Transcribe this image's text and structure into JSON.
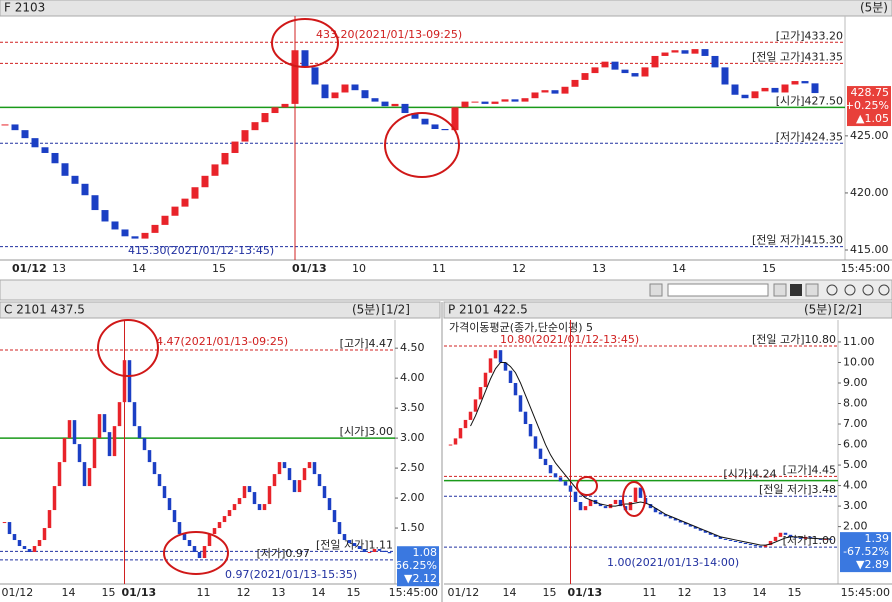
{
  "up_color": "#e8232a",
  "down_color": "#1b3fc4",
  "panels": [
    {
      "type": "candlestick",
      "title": "F 2103",
      "period": "(5분)",
      "end_time": "15:45:00",
      "closes": [
        426,
        425.5,
        424.8,
        424.0,
        423.5,
        422.6,
        421.5,
        420.8,
        419.8,
        418.5,
        417.5,
        416.8,
        416.2,
        416.0,
        416.5,
        417.2,
        418.0,
        418.8,
        419.5,
        420.5,
        421.5,
        422.5,
        423.5,
        424.5,
        425.5,
        426.2,
        427.0,
        427.5,
        427.8,
        432.5,
        431,
        429.5,
        428.3,
        428.8,
        429.5,
        429.0,
        428.3,
        428.0,
        427.6,
        427.8,
        427.0,
        426.5,
        426.0,
        425.6,
        425.5,
        427.5,
        428.0,
        428.0,
        427.8,
        428.0,
        428.2,
        428.0,
        428.3,
        428.8,
        429.0,
        428.7,
        429.3,
        429.9,
        430.5,
        431.0,
        431.5,
        430.8,
        430.5,
        430.2,
        431.0,
        432.0,
        432.3,
        432.5,
        432.2,
        432.6,
        432.0,
        431.0,
        429.5,
        428.6,
        428.3,
        428.9,
        429.2,
        428.8,
        429.5,
        429.8,
        429.6,
        428.75
      ],
      "categories": [
        null,
        "01/12",
        null,
        null,
        null,
        "13",
        null,
        null,
        null,
        null,
        null,
        null,
        null,
        "14",
        null,
        null,
        null,
        null,
        null,
        null,
        null,
        "15",
        null,
        null,
        null,
        null,
        null,
        null,
        null,
        "01/13",
        null,
        null,
        null,
        null,
        null,
        "10",
        null,
        null,
        null,
        null,
        null,
        null,
        null,
        "11",
        null,
        null,
        null,
        null,
        null,
        null,
        null,
        "12",
        null,
        null,
        null,
        null,
        null,
        null,
        null,
        "13",
        null,
        null,
        null,
        null,
        null,
        null,
        null,
        "14",
        null,
        null,
        null,
        null,
        null,
        null,
        null,
        null,
        "15",
        null,
        null,
        null,
        null,
        null
      ],
      "ylim": [
        414.3,
        435.5
      ],
      "yticks": [
        {
          "value": 425,
          "label": "425.00"
        },
        {
          "value": 420,
          "label": "420.00"
        },
        {
          "value": 415,
          "label": "415.00"
        }
      ],
      "levels": [
        {
          "label": "[고가]433.20",
          "value": 433.2,
          "color": "#d02020",
          "dashed": true
        },
        {
          "label": "[전일 고가]431.35",
          "value": 431.35,
          "color": "#d02020",
          "dashed": true
        },
        {
          "label": "[시가]427.50",
          "value": 427.5,
          "color": "#1a9a1a",
          "dashed": false
        },
        {
          "label": "[저가]424.35",
          "value": 424.35,
          "color": "#2030a0",
          "dashed": true
        },
        {
          "label": "[전일 저가]415.30",
          "value": 415.3,
          "color": "#2030a0",
          "dashed": true
        }
      ],
      "last": {
        "value": 428.75,
        "change": "+0.25%",
        "diff": "▲1.05",
        "color": "#e8403a"
      },
      "annotations": [
        "433.20(2021/01/13-09:25)",
        "415.30(2021/01/12-13:45)"
      ]
    },
    {
      "type": "candlestick",
      "title": "C 2101  437.5",
      "period": "(5분)",
      "page": "[1/2]",
      "end_time": "15:45:00",
      "closes": [
        1.6,
        1.4,
        1.3,
        1.2,
        1.15,
        1.1,
        1.2,
        1.3,
        1.5,
        1.8,
        2.2,
        2.6,
        3.0,
        3.3,
        2.9,
        2.6,
        2.2,
        2.5,
        3.0,
        3.4,
        3.1,
        2.7,
        3.2,
        3.6,
        4.3,
        3.6,
        3.2,
        3.0,
        2.8,
        2.6,
        2.4,
        2.2,
        2.0,
        1.8,
        1.6,
        1.4,
        1.3,
        1.2,
        1.1,
        1.0,
        1.2,
        1.4,
        1.5,
        1.6,
        1.7,
        1.8,
        1.9,
        2.0,
        2.2,
        2.1,
        1.9,
        1.8,
        1.9,
        2.2,
        2.4,
        2.6,
        2.5,
        2.3,
        2.1,
        2.3,
        2.5,
        2.6,
        2.4,
        2.2,
        2.0,
        1.8,
        1.6,
        1.4,
        1.3,
        1.25,
        1.2,
        1.15,
        1.1,
        1.1,
        1.15,
        1.12,
        1.1,
        1.08
      ],
      "categories": [
        "01/12",
        null,
        null,
        null,
        null,
        null,
        null,
        null,
        null,
        null,
        null,
        null,
        "14",
        null,
        null,
        null,
        null,
        null,
        null,
        null,
        "15",
        null,
        null,
        null,
        "01/13",
        null,
        null,
        null,
        null,
        null,
        null,
        null,
        null,
        null,
        null,
        null,
        null,
        null,
        null,
        "11",
        null,
        null,
        null,
        null,
        null,
        null,
        null,
        "12",
        null,
        null,
        null,
        null,
        null,
        null,
        "13",
        null,
        null,
        null,
        null,
        null,
        null,
        null,
        "14",
        null,
        null,
        null,
        null,
        null,
        null,
        "15",
        null,
        null,
        null,
        null,
        null,
        null,
        null,
        null
      ],
      "ylim": [
        0.6,
        4.97
      ],
      "yticks": [
        {
          "value": 4.5,
          "label": "4.50"
        },
        {
          "value": 4,
          "label": "4.00"
        },
        {
          "value": 3.5,
          "label": "3.50"
        },
        {
          "value": 3,
          "label": "3.00"
        },
        {
          "value": 2.5,
          "label": "2.50"
        },
        {
          "value": 2,
          "label": "2.00"
        },
        {
          "value": 1.5,
          "label": "1.50"
        }
      ],
      "levels": [
        {
          "label": "[고가]4.47",
          "value": 4.47,
          "color": "#d02020",
          "dashed": true
        },
        {
          "label": "[시가]3.00",
          "value": 3.0,
          "color": "#1a9a1a",
          "dashed": false
        },
        {
          "label": "[전일 저가]1.11",
          "value": 1.11,
          "color": "#2030a0",
          "dashed": true
        },
        {
          "label": "[저가]0.97",
          "value": 0.97,
          "color": "#2030a0",
          "dashed": true
        }
      ],
      "last": {
        "value": 1.08,
        "change": "-66.25%",
        "diff": "▼2.12",
        "color": "#3a78e0"
      },
      "annotations": [
        "4.47(2021/01/13-09:25)",
        "0.97(2021/01/13-15:35)"
      ]
    },
    {
      "type": "candlestick",
      "title": "P 2101  422.5",
      "period": "(5분)",
      "page": "[2/2]",
      "end_time": "15:45:00",
      "indicator": "가격이동평균(종가,단순이평) 5",
      "ma_color": "#111111",
      "closes": [
        6.0,
        6.3,
        6.8,
        7.2,
        7.6,
        8.2,
        8.8,
        9.5,
        10.2,
        10.6,
        10.0,
        9.6,
        9.0,
        8.4,
        7.6,
        7.0,
        6.4,
        5.8,
        5.3,
        5.0,
        4.6,
        4.4,
        4.2,
        4.0,
        3.7,
        3.2,
        2.8,
        3.0,
        3.3,
        3.1,
        3.0,
        2.9,
        3.1,
        3.3,
        3.0,
        2.8,
        3.2,
        3.9,
        3.4,
        3.1,
        2.9,
        2.7,
        2.6,
        2.5,
        2.4,
        2.3,
        2.2,
        2.1,
        2.0,
        1.9,
        1.8,
        1.7,
        1.6,
        1.5,
        1.4,
        1.35,
        1.3,
        1.25,
        1.2,
        1.15,
        1.1,
        1.05,
        1.0,
        1.1,
        1.3,
        1.5,
        1.7,
        1.6,
        1.5,
        1.45,
        1.4,
        1.5,
        1.45,
        1.4,
        1.35,
        1.4,
        1.39
      ],
      "ma": [
        null,
        null,
        null,
        null,
        6.9,
        7.4,
        8.0,
        8.6,
        9.2,
        9.7,
        10.0,
        10.0,
        9.8,
        9.5,
        9.0,
        8.4,
        7.8,
        7.2,
        6.6,
        6.0,
        5.5,
        5.1,
        4.8,
        4.5,
        4.2,
        3.9,
        3.6,
        3.4,
        3.3,
        3.2,
        3.1,
        3.05,
        3.0,
        3.0,
        3.05,
        3.1,
        3.1,
        3.15,
        3.2,
        3.15,
        3.05,
        2.9,
        2.75,
        2.6,
        2.5,
        2.4,
        2.3,
        2.2,
        2.1,
        2.0,
        1.9,
        1.8,
        1.7,
        1.6,
        1.5,
        1.45,
        1.4,
        1.35,
        1.3,
        1.25,
        1.2,
        1.15,
        1.1,
        1.1,
        1.15,
        1.25,
        1.35,
        1.45,
        1.5,
        1.5,
        1.48,
        1.45,
        1.43,
        1.42,
        1.41,
        1.4,
        1.4
      ],
      "categories": [
        "01/12",
        null,
        null,
        null,
        null,
        null,
        null,
        null,
        null,
        null,
        null,
        "14",
        null,
        null,
        null,
        null,
        null,
        null,
        null,
        "15",
        null,
        null,
        null,
        null,
        "01/13",
        null,
        null,
        null,
        null,
        null,
        null,
        null,
        null,
        null,
        null,
        null,
        null,
        null,
        null,
        "11",
        null,
        null,
        null,
        null,
        null,
        null,
        "12",
        null,
        null,
        null,
        null,
        null,
        null,
        "13",
        null,
        null,
        null,
        null,
        null,
        null,
        null,
        "14",
        null,
        null,
        null,
        null,
        null,
        null,
        "15",
        null,
        null,
        null,
        null,
        null,
        null,
        null,
        null
      ],
      "ylim": [
        -0.7,
        12.07
      ],
      "yticks": [
        {
          "value": 11,
          "label": "11.00"
        },
        {
          "value": 10,
          "label": "10.00"
        },
        {
          "value": 9,
          "label": "9.00"
        },
        {
          "value": 8,
          "label": "8.00"
        },
        {
          "value": 7,
          "label": "7.00"
        },
        {
          "value": 6,
          "label": "6.00"
        },
        {
          "value": 5,
          "label": "5.00"
        },
        {
          "value": 4,
          "label": "4.00"
        },
        {
          "value": 3,
          "label": "3.00"
        },
        {
          "value": 2,
          "label": "2.00"
        }
      ],
      "levels": [
        {
          "label": "[전일 고가]10.80",
          "value": 10.8,
          "color": "#d02020",
          "dashed": true
        },
        {
          "label": "[고가]4.45",
          "value": 4.45,
          "color": "#d02020",
          "dashed": true
        },
        {
          "label": "[시가]4.24",
          "value": 4.24,
          "color": "#1a9a1a",
          "dashed": false
        },
        {
          "label": "[전일 저가]3.48",
          "value": 3.48,
          "color": "#2030a0",
          "dashed": true
        },
        {
          "label": "[저가]1.00",
          "value": 1.0,
          "color": "#2030a0",
          "dashed": true
        }
      ],
      "last": {
        "value": 1.39,
        "change": "-67.52%",
        "diff": "▼2.89",
        "color": "#3a78e0"
      },
      "annotations": [
        "10.80(2021/01/12-13:45)",
        "1.00(2021/01/13-14:00)"
      ]
    }
  ]
}
